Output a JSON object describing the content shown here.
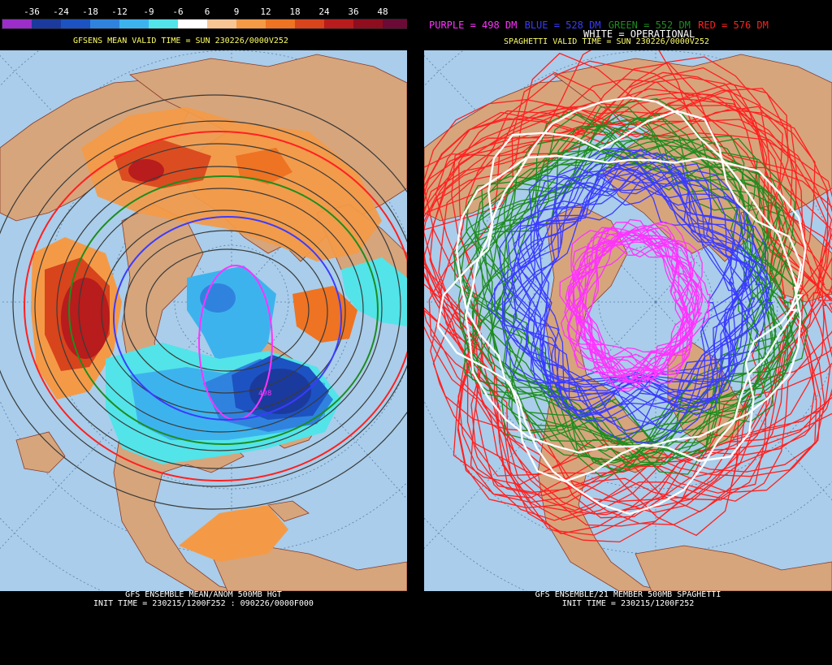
{
  "left": {
    "colorbar": {
      "labels": [
        "-36",
        "-24",
        "-18",
        "-12",
        "-9",
        "-6",
        "6",
        "9",
        "12",
        "18",
        "24",
        "36",
        "48"
      ],
      "colors": [
        "#9b2dc8",
        "#1b3a9e",
        "#1d52c2",
        "#2f83de",
        "#3db3ee",
        "#52e4e8",
        "#ffffff",
        "#f7c494",
        "#f49a47",
        "#ee7322",
        "#d8441c",
        "#b81c1c",
        "#8e0d1e",
        "#6b0a35"
      ]
    },
    "header": "GFSENS MEAN VALID TIME = SUN 230226/0000V252",
    "footer_line1": "GFS ENSEMBLE MEAN/ANOM 500MB HGT",
    "footer_line2": "INIT TIME = 230215/1200F252 : 090226/0000F000",
    "contour_label": "498"
  },
  "right": {
    "legend": {
      "purple": "PURPLE = 498 DM",
      "blue": "BLUE = 528 DM",
      "green": "GREEN = 552 DM",
      "red": "RED = 576 DM",
      "white": "WHITE = OPERATIONAL"
    },
    "legend_colors": {
      "purple": "#ff33ff",
      "blue": "#3b3bff",
      "green": "#1e8c1e",
      "red": "#ff2020",
      "white": "#ffffff"
    },
    "header": "SPAGHETTI VALID TIME = SUN 230226/0000V252",
    "footer_line1": "GFS ENSEMBLE/21 MEMBER 500MB SPAGHETTI",
    "footer_line2": "INIT TIME = 230215/1200F252"
  },
  "colors": {
    "ocean": "#a9cdea",
    "land": "#d6a57c",
    "border": "#8b3a2a"
  }
}
